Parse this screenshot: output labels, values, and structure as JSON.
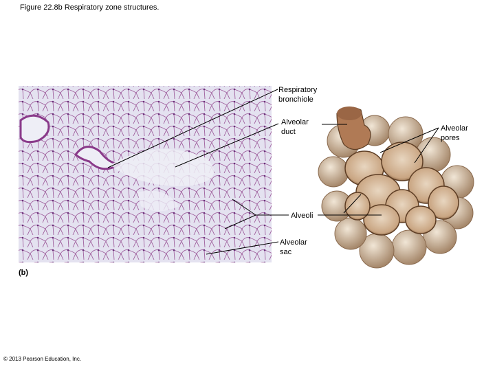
{
  "header": {
    "title": "Figure 22.8b  Respiratory zone structures."
  },
  "micrograph": {
    "panel_label": "(b)"
  },
  "labels": {
    "respiratory_bronchiole": "Respiratory bronchiole",
    "alveolar_duct": "Alveolar duct",
    "alveoli": "Alveoli",
    "alveolar_sac": "Alveolar sac",
    "alveolar_pores": "Alveolar pores"
  },
  "footer": {
    "copyright": "© 2013 Pearson Education, Inc."
  }
}
